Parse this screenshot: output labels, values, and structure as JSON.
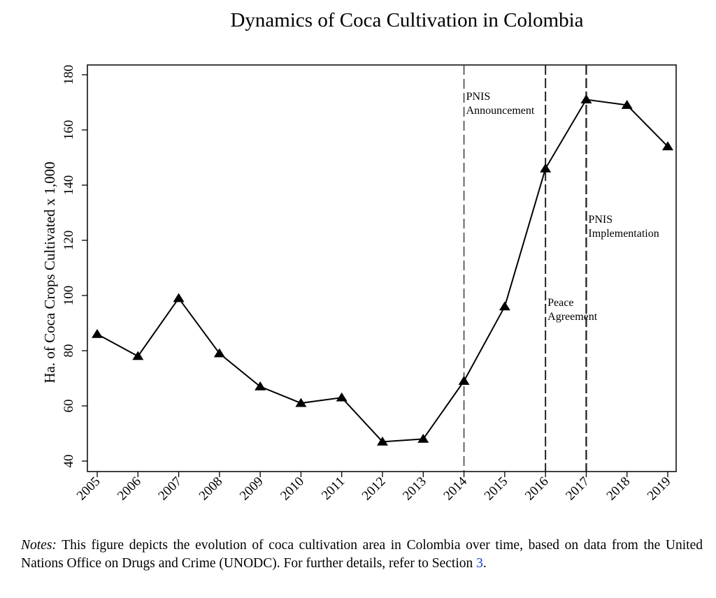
{
  "chart_data": {
    "type": "line",
    "title": "Dynamics of Coca Cultivation in Colombia",
    "xlabel": "",
    "ylabel": "Ha. of Coca Crops Cultivated x 1,000",
    "x": [
      2005,
      2006,
      2007,
      2008,
      2009,
      2010,
      2011,
      2012,
      2013,
      2014,
      2015,
      2016,
      2017,
      2018,
      2019
    ],
    "values": [
      86,
      78,
      99,
      79,
      67,
      61,
      63,
      47,
      48,
      69,
      96,
      146,
      171,
      169,
      154
    ],
    "ylim": [
      40,
      180
    ],
    "yticks": [
      40,
      60,
      80,
      100,
      120,
      140,
      160,
      180
    ],
    "marker": "triangle",
    "line_color": "#000000",
    "grid": false,
    "vlines": [
      {
        "x": 2014,
        "lines": [
          "PNIS",
          "Announcement"
        ]
      },
      {
        "x": 2016,
        "lines": [
          "Peace",
          "Agreement"
        ]
      },
      {
        "x": 2017,
        "lines": [
          "PNIS",
          "Implementation"
        ]
      }
    ]
  },
  "notes": {
    "label": "Notes:",
    "text_before": " This figure depicts the evolution of coca cultivation area in Colombia over time, based on data from the United Nations Office on Drugs and Crime (UNODC). For further details, refer to Section ",
    "section": "3",
    "text_after": "."
  }
}
